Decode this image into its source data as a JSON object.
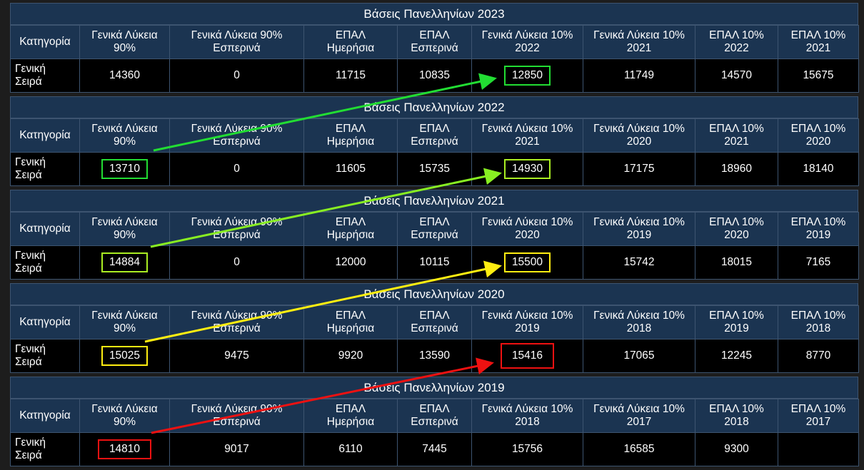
{
  "headers_common": {
    "category": "Κατηγορία",
    "general_90": "Γενικά Λύκεια\n90%",
    "general_90_evening": "Γενικά Λύκεια 90%\nΕσπερινά",
    "epal_day": "ΕΠΑΛ\nΗμερήσια",
    "epal_evening": "ΕΠΑΛ\nΕσπερινά",
    "general_10": "Γενικά Λύκεια 10%",
    "epal_10": "ΕΠΑΛ 10%"
  },
  "row_label": "Γενική\nΣειρά",
  "tables": [
    {
      "title": "Βάσεις Πανελληνίων 2023",
      "y1": "2022",
      "y2": "2021",
      "values": [
        "14360",
        "0",
        "11715",
        "10835",
        "12850",
        "11749",
        "14570",
        "15675"
      ]
    },
    {
      "title": "Βάσεις Πανελληνίων 2022",
      "y1": "2021",
      "y2": "2020",
      "values": [
        "13710",
        "0",
        "11605",
        "15735",
        "14930",
        "17175",
        "18960",
        "18140"
      ]
    },
    {
      "title": "Βάσεις Πανελληνίων 2021",
      "y1": "2020",
      "y2": "2019",
      "values": [
        "14884",
        "0",
        "12000",
        "10115",
        "15500",
        "15742",
        "18015",
        "7165"
      ]
    },
    {
      "title": "Βάσεις Πανελληνίων 2020",
      "y1": "2019",
      "y2": "2018",
      "values": [
        "15025",
        "9475",
        "9920",
        "13590",
        "15416",
        "17065",
        "12245",
        "8770"
      ]
    },
    {
      "title": "Βάσεις Πανελληνίων 2019",
      "y1": "2018",
      "y2": "2017",
      "values": [
        "14810",
        "9017",
        "6110",
        "7445",
        "15756",
        "16585",
        "9300",
        ""
      ]
    }
  ],
  "colors": {
    "green": "#22dd33",
    "light_green": "#66ee22",
    "yellow_green": "#aaee22",
    "yellow": "#ffee11",
    "red": "#ee1111"
  }
}
